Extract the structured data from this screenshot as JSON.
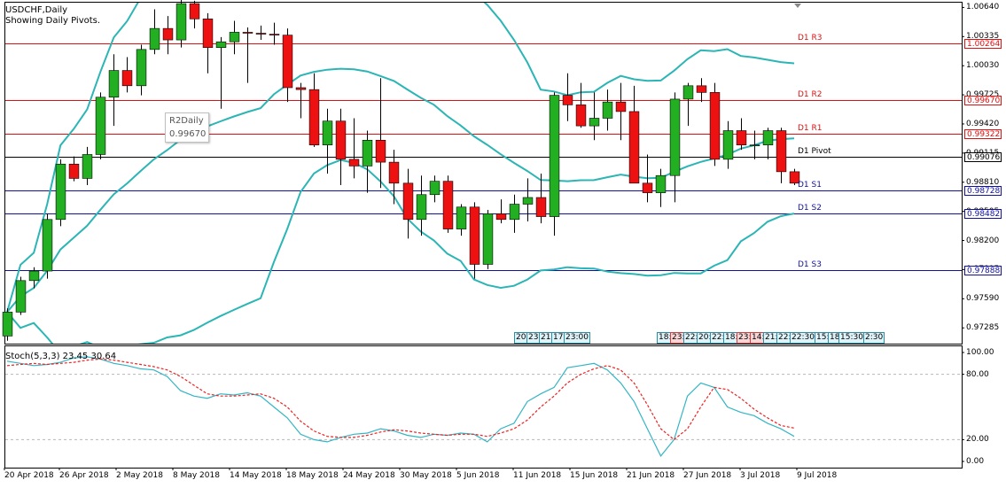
{
  "header": {
    "symbol": "USDCHF,Daily",
    "subtitle": "Showing Daily Pivots."
  },
  "colors": {
    "bull": "#22b022",
    "bear": "#ee1111",
    "band": "#2bb5b5",
    "stoch_main": "#33b5c5",
    "stoch_signal": "#ee2222",
    "resistance": "#dd1111",
    "support": "#111199",
    "pivot": "#000000"
  },
  "price_scale": [
    "1.00640",
    "1.00335",
    "1.00030",
    "0.99725",
    "0.99420",
    "0.99115",
    "0.98810",
    "0.98505",
    "0.98200",
    "0.97895",
    "0.97590",
    "0.97285"
  ],
  "pivots": [
    {
      "key": "r3",
      "label": "D1 R3",
      "value": "1.00264"
    },
    {
      "key": "r2",
      "label": "D1 R2",
      "value": "0.99670"
    },
    {
      "key": "r1",
      "label": "D1 R1",
      "value": "0.99322"
    },
    {
      "key": "pivot",
      "label": "D1 Pivot",
      "value": "0.99076"
    },
    {
      "key": "s1",
      "label": "D1 S1",
      "value": "0.98728"
    },
    {
      "key": "s2",
      "label": "D1 S2",
      "value": "0.98482"
    },
    {
      "key": "s3",
      "label": "D1 S3",
      "value": "0.97888"
    }
  ],
  "tooltip": {
    "line1": "R2Daily",
    "line2": "0.99670"
  },
  "time_boxes_left": [
    "20:",
    "23:",
    "21:",
    "17:",
    "23:00"
  ],
  "time_boxes_right": [
    "18:",
    "23:",
    "22:",
    "20:",
    "22:",
    "18:",
    "23:",
    "14:",
    "21:",
    "22:",
    "22:30",
    "15:",
    "18",
    "15:30",
    "2:30"
  ],
  "time_boxes_right_red": [
    1,
    6,
    7
  ],
  "stoch": {
    "label": "Stoch(5,3,3) 23.45 30.64",
    "scale": [
      "100.00",
      "80.00",
      "20.00",
      "0.00"
    ]
  },
  "dates": [
    "20 Apr 2018",
    "26 Apr 2018",
    "2 May 2018",
    "8 May 2018",
    "14 May 2018",
    "18 May 2018",
    "24 May 2018",
    "30 May 2018",
    "5 Jun 2018",
    "11 Jun 2018",
    "15 Jun 2018",
    "21 Jun 2018",
    "27 Jun 2018",
    "3 Jul 2018",
    "9 Jul 2018"
  ],
  "chart_data": {
    "type": "candlestick",
    "ohlc": [
      [
        0.972,
        0.9749,
        0.9715,
        0.9745
      ],
      [
        0.9745,
        0.9782,
        0.9742,
        0.9778
      ],
      [
        0.9778,
        0.9792,
        0.977,
        0.9788
      ],
      [
        0.9788,
        0.9848,
        0.978,
        0.9842
      ],
      [
        0.9842,
        0.9905,
        0.9835,
        0.99
      ],
      [
        0.99,
        0.9908,
        0.9882,
        0.9885
      ],
      [
        0.9885,
        0.9918,
        0.9878,
        0.991
      ],
      [
        0.991,
        0.9975,
        0.9905,
        0.997
      ],
      [
        0.997,
        1.0015,
        0.994,
        0.9998
      ],
      [
        0.9998,
        1.0012,
        0.9975,
        0.9982
      ],
      [
        0.9982,
        1.0025,
        0.9972,
        1.002
      ],
      [
        1.002,
        1.0062,
        1.0015,
        1.0042
      ],
      [
        1.0042,
        1.0055,
        1.0015,
        1.003
      ],
      [
        1.003,
        1.0072,
        1.0022,
        1.0068
      ],
      [
        1.0068,
        1.0071,
        1.0042,
        1.0052
      ],
      [
        1.0052,
        1.0058,
        0.9995,
        1.0022
      ],
      [
        1.0022,
        1.0033,
        0.9958,
        1.0028
      ],
      [
        1.0028,
        1.005,
        1.0015,
        1.0038
      ],
      [
        1.0038,
        1.0043,
        0.9985,
        1.0037
      ],
      [
        1.0037,
        1.0045,
        1.003,
        1.0036
      ],
      [
        1.0036,
        1.0048,
        1.0025,
        1.0035
      ],
      [
        1.0035,
        1.0042,
        0.9965,
        0.998
      ],
      [
        0.998,
        0.9985,
        0.9948,
        0.9978
      ],
      [
        0.9978,
        0.9995,
        0.9918,
        0.992
      ],
      [
        0.992,
        0.9958,
        0.989,
        0.9945
      ],
      [
        0.9945,
        0.9958,
        0.9878,
        0.9905
      ],
      [
        0.9905,
        0.9948,
        0.9885,
        0.9898
      ],
      [
        0.9898,
        0.9935,
        0.987,
        0.9925
      ],
      [
        0.9925,
        0.999,
        0.9875,
        0.9902
      ],
      [
        0.9902,
        0.9915,
        0.9858,
        0.988
      ],
      [
        0.988,
        0.9895,
        0.9822,
        0.9842
      ],
      [
        0.9842,
        0.9888,
        0.9825,
        0.9868
      ],
      [
        0.9868,
        0.9888,
        0.986,
        0.9882
      ],
      [
        0.9882,
        0.9888,
        0.9828,
        0.9832
      ],
      [
        0.9832,
        0.9858,
        0.9825,
        0.9855
      ],
      [
        0.9855,
        0.986,
        0.978,
        0.9795
      ],
      [
        0.9795,
        0.9852,
        0.979,
        0.9848
      ],
      [
        0.9848,
        0.9863,
        0.9838,
        0.9842
      ],
      [
        0.9842,
        0.9868,
        0.9828,
        0.9858
      ],
      [
        0.9858,
        0.9885,
        0.984,
        0.9865
      ],
      [
        0.9865,
        0.989,
        0.9838,
        0.9845
      ],
      [
        0.9845,
        0.9975,
        0.9825,
        0.9972
      ],
      [
        0.9972,
        0.9995,
        0.9945,
        0.9962
      ],
      [
        0.9962,
        0.9985,
        0.9938,
        0.994
      ],
      [
        0.994,
        0.9975,
        0.9925,
        0.9948
      ],
      [
        0.9948,
        0.9978,
        0.9935,
        0.9965
      ],
      [
        0.9965,
        0.9985,
        0.9925,
        0.9955
      ],
      [
        0.9955,
        0.9982,
        0.988,
        0.988
      ],
      [
        0.988,
        0.991,
        0.986,
        0.987
      ],
      [
        0.987,
        0.9895,
        0.9855,
        0.9888
      ],
      [
        0.9888,
        0.9975,
        0.986,
        0.9968
      ],
      [
        0.9968,
        0.9985,
        0.994,
        0.9982
      ],
      [
        0.9982,
        0.999,
        0.9965,
        0.9975
      ],
      [
        0.9975,
        0.9985,
        0.9898,
        0.9905
      ],
      [
        0.9905,
        0.9945,
        0.9895,
        0.9935
      ],
      [
        0.9935,
        0.9948,
        0.9915,
        0.992
      ],
      [
        0.992,
        0.9935,
        0.9905,
        0.992
      ],
      [
        0.992,
        0.9938,
        0.9905,
        0.9935
      ],
      [
        0.9935,
        0.9938,
        0.988,
        0.9892
      ],
      [
        0.9892,
        0.9895,
        0.9878,
        0.988
      ]
    ],
    "ylim": [
      0.9712,
      1.0069
    ],
    "stoch_main": [
      92,
      90,
      88,
      89,
      91,
      95,
      96,
      94,
      90,
      88,
      85,
      84,
      78,
      65,
      60,
      58,
      62,
      61,
      63,
      60,
      50,
      40,
      25,
      20,
      18,
      22,
      25,
      26,
      30,
      28,
      24,
      22,
      25,
      24,
      26,
      25,
      18,
      30,
      35,
      55,
      62,
      68,
      86,
      88,
      90,
      84,
      72,
      55,
      30,
      5,
      20,
      60,
      72,
      68,
      50,
      45,
      42,
      35,
      30,
      23
    ],
    "stoch_signal": [
      88,
      89,
      90,
      89,
      90,
      91,
      93,
      94,
      93,
      91,
      89,
      87,
      84,
      78,
      70,
      62,
      60,
      60,
      61,
      62,
      58,
      50,
      37,
      28,
      23,
      22,
      22,
      24,
      27,
      29,
      28,
      26,
      25,
      24,
      25,
      25,
      23,
      26,
      30,
      38,
      50,
      60,
      72,
      80,
      85,
      88,
      84,
      72,
      52,
      30,
      20,
      30,
      50,
      68,
      66,
      58,
      48,
      40,
      33,
      30.64
    ],
    "stoch_ylim": [
      0,
      100
    ],
    "stoch_levels": [
      80,
      20
    ]
  }
}
